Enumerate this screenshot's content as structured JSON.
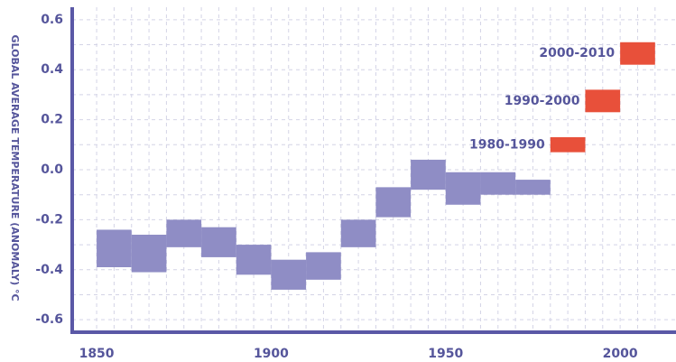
{
  "chart_data": {
    "type": "range_bar",
    "y_label": "GLOBAL AVERAGE TEMPERATURE (ANOMALY) °C",
    "xlim": [
      1843,
      2016
    ],
    "xticks": [
      1850,
      1900,
      1950,
      2000
    ],
    "ylim": [
      -0.65,
      0.65
    ],
    "yticks": [
      {
        "value": -0.6,
        "label": "-0.6"
      },
      {
        "value": -0.4,
        "label": "-0.4"
      },
      {
        "value": -0.2,
        "label": "-0.2"
      },
      {
        "value": 0,
        "label": "0.0"
      },
      {
        "value": 0.2,
        "label": "0.2"
      },
      {
        "value": 0.4,
        "label": "0.4"
      },
      {
        "value": 0.6,
        "label": "0.6"
      }
    ],
    "x_gridlines": [
      1855,
      1860,
      1865,
      1870,
      1875,
      1880,
      1885,
      1890,
      1895,
      1905,
      1910,
      1915,
      1920,
      1925,
      1930,
      1935,
      1940,
      1945,
      1955,
      1960,
      1965,
      1970,
      1975,
      1980,
      1985,
      1990,
      1995,
      2005,
      2010
    ],
    "y_gridlines": [
      -0.5,
      -0.3,
      -0.1,
      0.1,
      0.3,
      0.5
    ],
    "grid": true,
    "series": [
      {
        "color": "#8f8dc5",
        "x_start": [
          1850,
          1860,
          1870,
          1880,
          1890,
          1900,
          1910,
          1920,
          1930,
          1940,
          1950,
          1960,
          1970
        ],
        "x_end": [
          1860,
          1870,
          1880,
          1890,
          1900,
          1910,
          1920,
          1930,
          1940,
          1950,
          1960,
          1970,
          1980
        ],
        "low": [
          -0.39,
          -0.41,
          -0.31,
          -0.35,
          -0.42,
          -0.48,
          -0.44,
          -0.31,
          -0.19,
          -0.08,
          -0.14,
          -0.1,
          -0.1
        ],
        "high": [
          -0.24,
          -0.26,
          -0.2,
          -0.23,
          -0.3,
          -0.36,
          -0.33,
          -0.2,
          -0.07,
          0.04,
          -0.01,
          -0.01,
          -0.04
        ]
      },
      {
        "color": "#e8503a",
        "labels": [
          "1980-1990",
          "1990-2000",
          "2000-2010"
        ],
        "x_start": [
          1980,
          1990,
          2000
        ],
        "x_end": [
          1990,
          2000,
          2010
        ],
        "low": [
          0.07,
          0.23,
          0.42
        ],
        "high": [
          0.13,
          0.32,
          0.51
        ]
      }
    ]
  }
}
